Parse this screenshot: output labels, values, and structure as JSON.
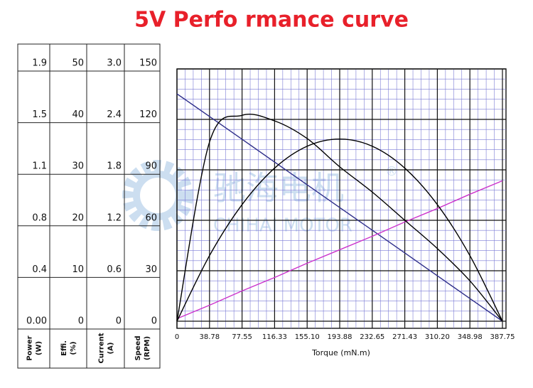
{
  "chart_data": {
    "type": "performance",
    "title": "5V Perfo rmance curve",
    "x_label": "Torque (mN.m)",
    "xlim": [
      0,
      387.75
    ],
    "xticks": [
      0,
      38.78,
      77.55,
      116.33,
      {
        "value": 155.1,
        "label": "155.10"
      },
      193.88,
      232.65,
      271.43,
      {
        "value": 310.2,
        "label": "310.20"
      },
      348.98,
      387.75
    ],
    "x": [
      0,
      38.78,
      77.55,
      116.33,
      155.1,
      193.88,
      232.65,
      271.43,
      310.2,
      348.98,
      387.75
    ],
    "y_axes": {
      "power": {
        "label": "Power",
        "unit": "(W)",
        "ylim": [
          0,
          1.9
        ],
        "yticks": [
          {
            "value": 0,
            "label": "0.00"
          },
          0.4,
          0.8,
          1.1,
          1.5,
          1.9
        ]
      },
      "efficiency": {
        "label": "Effi.",
        "unit": "(%)",
        "ylim": [
          0,
          50
        ],
        "yticks": [
          0,
          10,
          20,
          30,
          40,
          50
        ]
      },
      "current": {
        "label": "Current",
        "unit": "(A)",
        "ylim": [
          0,
          3
        ],
        "yticks": [
          0,
          0.6,
          1.2,
          1.8,
          2.4,
          {
            "value": 3,
            "label": "3.0"
          }
        ]
      },
      "speed": {
        "label": "Speed",
        "unit": "(RPM)",
        "ylim": [
          0,
          150
        ],
        "yticks": [
          0,
          30,
          60,
          90,
          120,
          150
        ]
      }
    },
    "grid": true,
    "series": [
      {
        "axis": "speed",
        "color": "#2e2e8a",
        "values": [
          135.2,
          121.7,
          108.2,
          94.6,
          81.1,
          67.6,
          54.1,
          40.6,
          27.0,
          13.5,
          0
        ]
      },
      {
        "axis": "current",
        "color": "#cc33cc",
        "values": [
          0.03,
          0.19,
          0.36,
          0.52,
          0.69,
          0.85,
          1.01,
          1.18,
          1.34,
          1.51,
          1.67
        ]
      },
      {
        "axis": "efficiency",
        "color": "#000000",
        "values": [
          0,
          35.5,
          40.8,
          39.7,
          36.2,
          30.6,
          25.6,
          20.0,
          14.4,
          8.0,
          0
        ]
      },
      {
        "axis": "power",
        "color": "#000000",
        "values": [
          0,
          0.494,
          0.878,
          1.153,
          1.318,
          1.372,
          1.318,
          1.153,
          0.878,
          0.494,
          0
        ]
      }
    ],
    "watermark": {
      "cn": "驰海电机",
      "en": "CHIHAI MOTOR",
      "mark": "®"
    }
  }
}
